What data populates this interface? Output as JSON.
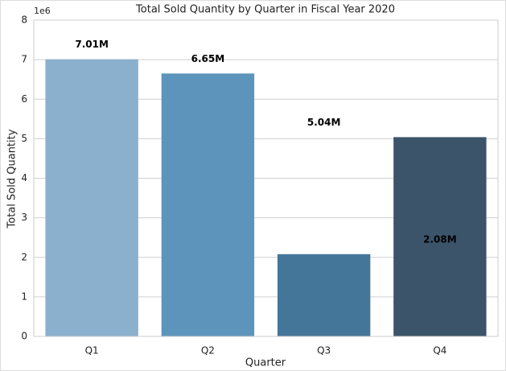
{
  "chart_data": {
    "type": "bar",
    "title": "Total Sold Quantity by Quarter in Fiscal Year 2020",
    "x_label": "Quarter",
    "y_label": "Total Sold Quantity",
    "y_offset_label": "1e6",
    "categories": [
      "Q1",
      "Q2",
      "Q3",
      "Q4"
    ],
    "values": [
      7010000,
      6650000,
      2080000,
      5040000
    ],
    "value_labels": [
      "7.01M",
      "6.65M",
      "2.08M",
      "5.04M"
    ],
    "colors": [
      "#8ab0cd",
      "#5d94bc",
      "#44769a",
      "#3c546a"
    ],
    "ylim": [
      0,
      8000000
    ],
    "yticks": [
      0,
      {
        "value": 1000000,
        "label": "1"
      },
      {
        "value": 2000000,
        "label": "2"
      },
      {
        "value": 3000000,
        "label": "3"
      },
      {
        "value": 4000000,
        "label": "4"
      },
      {
        "value": 5000000,
        "label": "5"
      },
      {
        "value": 6000000,
        "label": "6"
      },
      {
        "value": 7000000,
        "label": "7"
      },
      {
        "value": 8000000,
        "label": "8"
      }
    ],
    "grid": true
  }
}
